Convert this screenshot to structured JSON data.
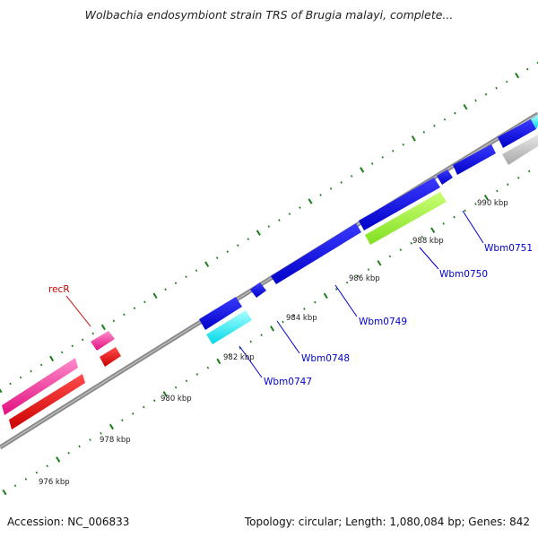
{
  "title": "Wolbachia endosymbiont strain TRS of Brugia malayi, complete...",
  "ruler": {
    "unit_labels": [
      {
        "text": "976 kbp"
      },
      {
        "text": "978 kbp"
      },
      {
        "text": "980 kbp"
      },
      {
        "text": "982 kbp"
      },
      {
        "text": "984 kbp"
      },
      {
        "text": "986 kbp"
      },
      {
        "text": "988 kbp"
      },
      {
        "text": "990 kbp"
      }
    ]
  },
  "genes": [
    {
      "name": "recR",
      "color": "#ff0000"
    },
    {
      "name": "Wbm0747",
      "color": "#00ffff"
    },
    {
      "name": "Wbm0748",
      "color": "#0000ff"
    },
    {
      "name": "Wbm0749",
      "color": "#0000ff"
    },
    {
      "name": "Wbm0750",
      "color": "#99ff33"
    },
    {
      "name": "Wbm0751",
      "color": "#0000ff"
    }
  ],
  "colors": {
    "backbone": "#777777",
    "tick": "#1a7f1a",
    "gene_label": "#0000cc",
    "recR_label": "#cc0000",
    "pink_feature": "#ff1493",
    "grey_feature": "#bbbbbb"
  },
  "footer": {
    "accession": "Accession: NC_006833",
    "summary": "Topology: circular; Length: 1,080,084 bp; Genes: 842"
  }
}
